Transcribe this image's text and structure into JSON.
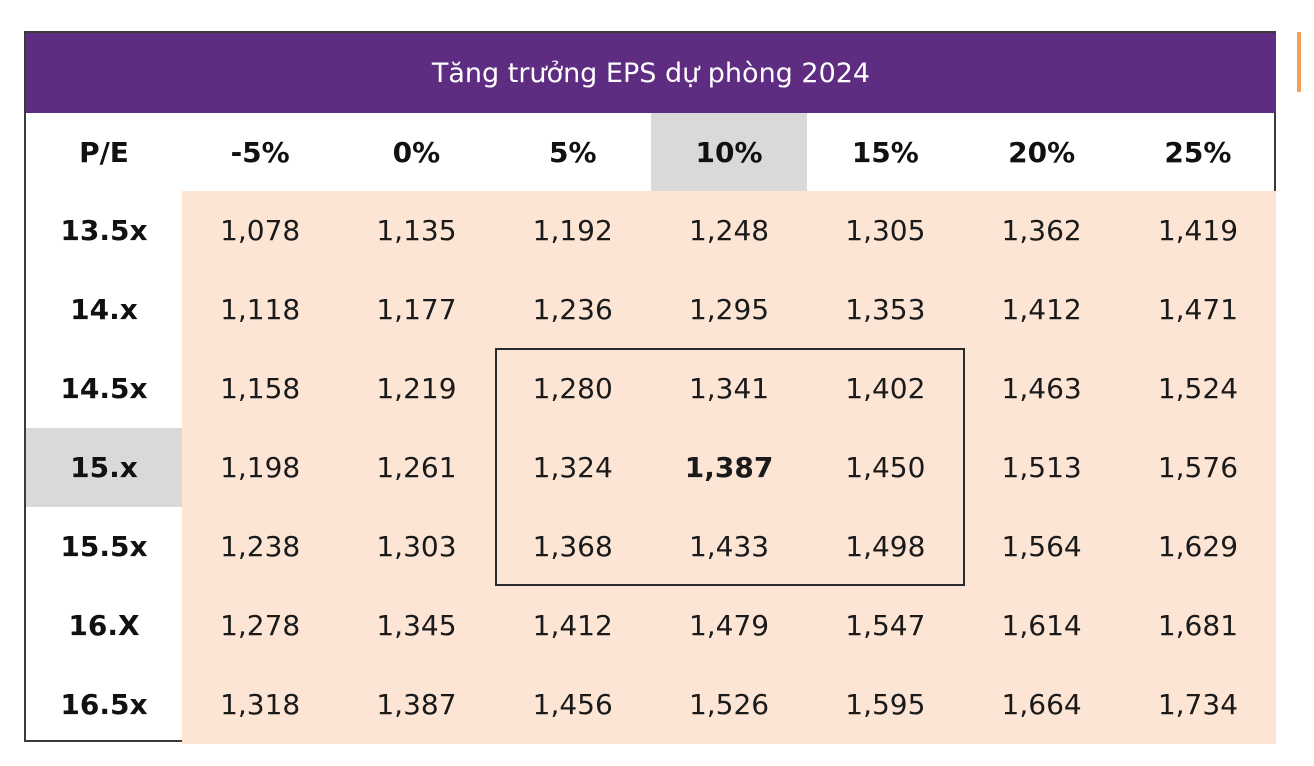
{
  "table": {
    "title": "Tăng trưởng EPS dự phòng 2024",
    "corner": "P/E",
    "columns": [
      "-5%",
      "0%",
      "5%",
      "10%",
      "15%",
      "20%",
      "25%"
    ],
    "highlight_column_index": 3,
    "highlight_row_index": 3,
    "bold_cell": {
      "row": 3,
      "col": 3
    },
    "rows": [
      {
        "label": "13.5x",
        "values": [
          "1,078",
          "1,135",
          "1,192",
          "1,248",
          "1,305",
          "1,362",
          "1,419"
        ]
      },
      {
        "label": "14.x",
        "values": [
          "1,118",
          "1,177",
          "1,236",
          "1,295",
          "1,353",
          "1,412",
          "1,471"
        ]
      },
      {
        "label": "14.5x",
        "values": [
          "1,158",
          "1,219",
          "1,280",
          "1,341",
          "1,402",
          "1,463",
          "1,524"
        ]
      },
      {
        "label": "15.x",
        "values": [
          "1,198",
          "1,261",
          "1,324",
          "1,387",
          "1,450",
          "1,513",
          "1,576"
        ]
      },
      {
        "label": "15.5x",
        "values": [
          "1,238",
          "1,303",
          "1,368",
          "1,433",
          "1,498",
          "1,564",
          "1,629"
        ]
      },
      {
        "label": "16.X",
        "values": [
          "1,278",
          "1,345",
          "1,412",
          "1,479",
          "1,547",
          "1,614",
          "1,681"
        ]
      },
      {
        "label": "16.5x",
        "values": [
          "1,318",
          "1,387",
          "1,456",
          "1,526",
          "1,595",
          "1,664",
          "1,734"
        ]
      }
    ]
  },
  "colors": {
    "title_bg": "#5e2d82",
    "cell_bg": "#fde5d5",
    "highlight_bg": "#d9d9d9",
    "side_marker": "#f0a05a"
  }
}
